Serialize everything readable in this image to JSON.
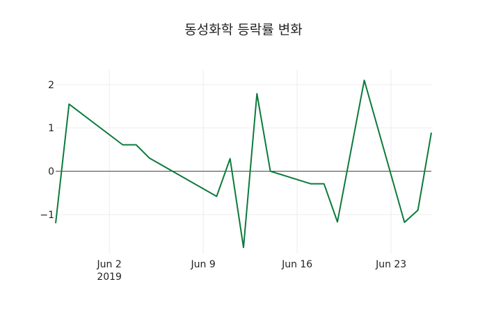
{
  "chart_data": {
    "type": "line",
    "title": "동성화학 등락률 변화",
    "xlabel": "",
    "ylabel": "",
    "x_tick_labels": [
      {
        "date": "2019-06-02",
        "label": "Jun 2",
        "sublabel": "2019"
      },
      {
        "date": "2019-06-09",
        "label": "Jun 9",
        "sublabel": ""
      },
      {
        "date": "2019-06-16",
        "label": "Jun 16",
        "sublabel": ""
      },
      {
        "date": "2019-06-23",
        "label": "Jun 23",
        "sublabel": ""
      }
    ],
    "y_ticks": [
      {
        "value": -1,
        "label": "−1"
      },
      {
        "value": 0,
        "label": "0"
      },
      {
        "value": 1,
        "label": "1"
      },
      {
        "value": 2,
        "label": "2"
      }
    ],
    "xlim": [
      "2019-05-29",
      "2019-06-26"
    ],
    "ylim": [
      -1.9,
      2.35
    ],
    "grid": true,
    "zero_line": true,
    "series": [
      {
        "name": "등락률",
        "color": "#0b7a3b",
        "x": [
          "2019-05-29",
          "2019-05-30",
          "2019-06-03",
          "2019-06-04",
          "2019-06-05",
          "2019-06-10",
          "2019-06-11",
          "2019-06-12",
          "2019-06-13",
          "2019-06-14",
          "2019-06-17",
          "2019-06-18",
          "2019-06-19",
          "2019-06-21",
          "2019-06-24",
          "2019-06-25",
          "2019-06-26"
        ],
        "values": [
          -1.2,
          1.55,
          0.61,
          0.61,
          0.3,
          -0.58,
          0.29,
          -1.76,
          1.79,
          0.0,
          -0.29,
          -0.29,
          -1.17,
          2.1,
          -1.18,
          -0.9,
          0.89
        ]
      }
    ]
  }
}
